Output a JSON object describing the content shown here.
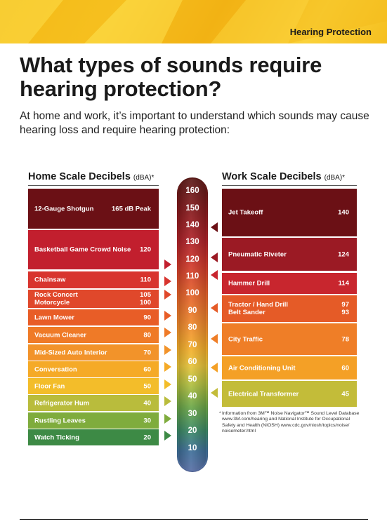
{
  "header": {
    "section_label": "Hearing Protection"
  },
  "title": "What types of sounds require hearing protection?",
  "subtitle": "At home and work, it’s important to understand which sounds may cause hearing loss and require hearing protection:",
  "home_scale": {
    "heading": "Home Scale Decibels",
    "unit": "(dBA)*",
    "items": [
      {
        "label": "12-Gauge Shotgun",
        "value": "165 dB Peak",
        "color": "#6b1015"
      },
      {
        "label": "Basketball Game Crowd Noise",
        "value": "120",
        "color": "#c21f2e"
      },
      {
        "label": "Chainsaw",
        "value": "110",
        "color": "#d8342e"
      },
      {
        "label": "Rock Concert",
        "value": "105",
        "label2": "Motorcycle",
        "value2": "100",
        "color": "#e0482b"
      },
      {
        "label": "Lawn Mower",
        "value": "90",
        "color": "#e85d27"
      },
      {
        "label": "Vacuum Cleaner",
        "value": "80",
        "color": "#ef7a27"
      },
      {
        "label": "Mid-Sized Auto Interior",
        "value": "70",
        "color": "#f2932a"
      },
      {
        "label": "Conversation",
        "value": "60",
        "color": "#f5aa27"
      },
      {
        "label": "Floor Fan",
        "value": "50",
        "color": "#f3bd2a"
      },
      {
        "label": "Refrigerator Hum",
        "value": "40",
        "color": "#b9bc3c"
      },
      {
        "label": "Rustling Leaves",
        "value": "30",
        "color": "#7fac3d"
      },
      {
        "label": "Watch Ticking",
        "value": "20",
        "color": "#3d8a45"
      }
    ]
  },
  "work_scale": {
    "heading": "Work Scale Decibels",
    "unit": "(dBA)*",
    "items": [
      {
        "label": "Jet Takeoff",
        "value": "140",
        "color": "#6b1015"
      },
      {
        "label": "Pneumatic Riveter",
        "value": "124",
        "color": "#9b1a24"
      },
      {
        "label": "Hammer Drill",
        "value": "114",
        "color": "#c8262e"
      },
      {
        "label": "Tractor / Hand Drill",
        "value": "97",
        "label2": "Belt Sander",
        "value2": "93",
        "color": "#e55b27"
      },
      {
        "label": "City Traffic",
        "value": "78",
        "color": "#ef7e27"
      },
      {
        "label": "Air Conditioning Unit",
        "value": "60",
        "color": "#f4a026"
      },
      {
        "label": "Electrical Transformer",
        "value": "45",
        "color": "#c3bc39"
      }
    ]
  },
  "scale_ticks": [
    "160",
    "150",
    "140",
    "130",
    "120",
    "110",
    "100",
    "90",
    "80",
    "70",
    "60",
    "50",
    "40",
    "30",
    "20",
    "10"
  ],
  "footnote": {
    "star": "*",
    "line1": "Information from 3M™ Noise Navigator™ Sound Level Database",
    "line2": "www.3M.com/hearing and National Institute for Occupational",
    "line3": "Safety and Health (NIOSH)  www.cdc.gov/niosh/topics/noise/",
    "line4": "noisemeter.html"
  }
}
